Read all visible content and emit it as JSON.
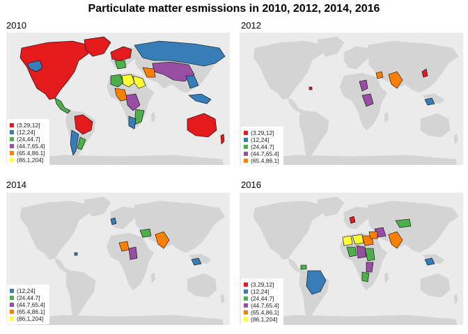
{
  "title": "Particulate matter esmissions in 2010, 2012, 2014, 2016",
  "bins": [
    {
      "label": "(3.29,12]",
      "color": "#e41a1c"
    },
    {
      "label": "(12,24]",
      "color": "#377eb8"
    },
    {
      "label": "(24,44.7]",
      "color": "#4daf4a"
    },
    {
      "label": "(44.7,65.4]",
      "color": "#984ea3"
    },
    {
      "label": "(65.4,86.1]",
      "color": "#ff7f00"
    },
    {
      "label": "(86.1,204]",
      "color": "#ffff33"
    }
  ],
  "background_land_color": "#d4d4d4",
  "ocean_color": "#ebebeb",
  "panels": [
    {
      "label": "2010",
      "legend_bins": [
        0,
        1,
        2,
        3,
        4,
        5
      ]
    },
    {
      "label": "2012",
      "legend_bins": [
        0,
        1,
        2,
        3,
        4
      ]
    },
    {
      "label": "2014",
      "legend_bins": [
        1,
        2,
        3,
        4,
        5
      ]
    },
    {
      "label": "2016",
      "legend_bins": [
        0,
        1,
        2,
        3,
        4,
        5
      ]
    }
  ]
}
